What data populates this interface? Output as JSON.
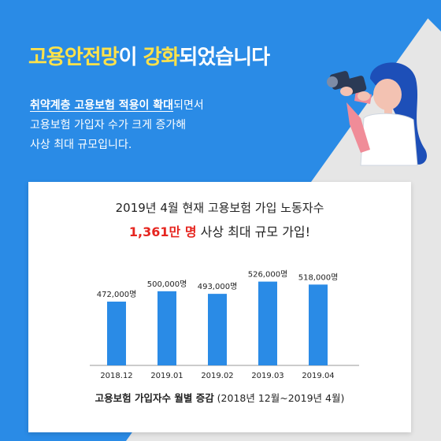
{
  "headline": {
    "part1": "고용안전망",
    "part2": "이 ",
    "part3": "강화",
    "part4": "되었습니다"
  },
  "intro": {
    "line1_emph": "취약계층 고용보험 적용이 확대",
    "line1_rest": "되면서",
    "line2": "고용보험 가입자 수가 크게 증가해",
    "line3": "사상 최대 규모입니다."
  },
  "colors": {
    "background_blue": "#2a8be6",
    "accent_yellow": "#ffe24a",
    "bar_blue": "#2a8be6",
    "highlight_red": "#e6251f"
  },
  "chart_data": {
    "type": "bar",
    "title": "2019년 4월 현재 고용보험 가입 노동자수",
    "subtitle_highlight": "1,361만 명",
    "subtitle_rest": " 사상 최대 규모 가입!",
    "categories": [
      "2018.12",
      "2019.01",
      "2019.02",
      "2019.03",
      "2019.04"
    ],
    "values": [
      472000,
      500000,
      493000,
      526000,
      518000
    ],
    "data_labels": [
      "472,000명",
      "500,000명",
      "493,000명",
      "526,000명",
      "518,000명"
    ],
    "ylim": [
      300000,
      540000
    ],
    "caption_bold": "고용보험 가입자수 월별 증감",
    "caption_rest": " (2018년 12월~2019년 4월)",
    "grid": false,
    "legend": "none"
  }
}
